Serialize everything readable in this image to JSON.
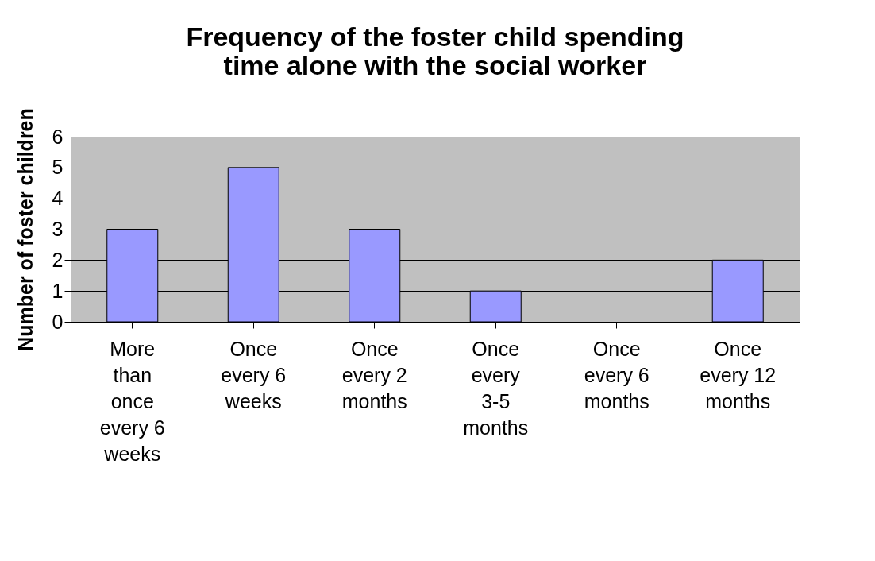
{
  "chart_data": {
    "type": "bar",
    "title": "Frequency of the foster child spending time alone with the social worker",
    "ylabel": "Number of foster children",
    "categories": [
      "More than once every 6 weeks",
      "Once every 6 weeks",
      "Once every 2 months",
      "Once every 3-5 months",
      "Once every 6 months",
      "Once every 12 months"
    ],
    "values": [
      3,
      5,
      3,
      1,
      0,
      2
    ],
    "color": "#9999ff",
    "ylim": [
      0,
      6
    ],
    "yticks": [
      0,
      1,
      2,
      3,
      4,
      5,
      6
    ],
    "grid": "y"
  }
}
